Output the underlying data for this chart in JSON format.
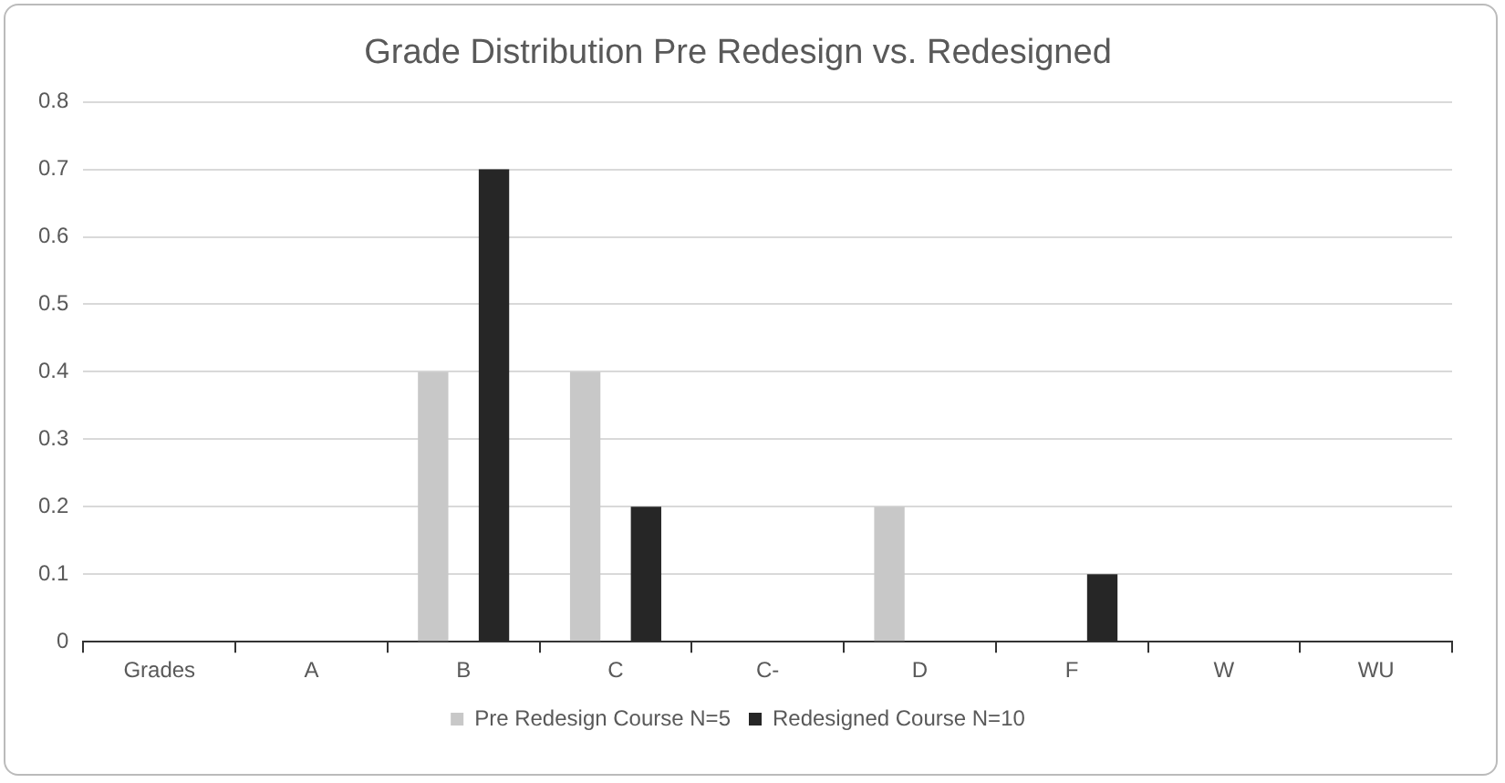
{
  "chart_data": {
    "type": "bar",
    "title": "Grade Distribution Pre Redesign vs. Redesigned",
    "categories": [
      "Grades",
      "A",
      "B",
      "C",
      "C-",
      "D",
      "F",
      "W",
      "WU"
    ],
    "series": [
      {
        "name": "Pre Redesign Course N=5",
        "color": "#c8c8c8",
        "values": [
          0,
          0,
          0.4,
          0.4,
          0,
          0.2,
          0,
          0,
          0
        ]
      },
      {
        "name": "Redesigned Course N=10",
        "color": "#262626",
        "values": [
          0,
          0,
          0.7,
          0.2,
          0,
          0,
          0.1,
          0,
          0
        ]
      }
    ],
    "ylim": [
      0,
      0.8
    ],
    "yticks": [
      0,
      0.1,
      0.2,
      0.3,
      0.4,
      0.5,
      0.6,
      0.7,
      0.8
    ],
    "grid": "y",
    "legend": "bottom"
  }
}
